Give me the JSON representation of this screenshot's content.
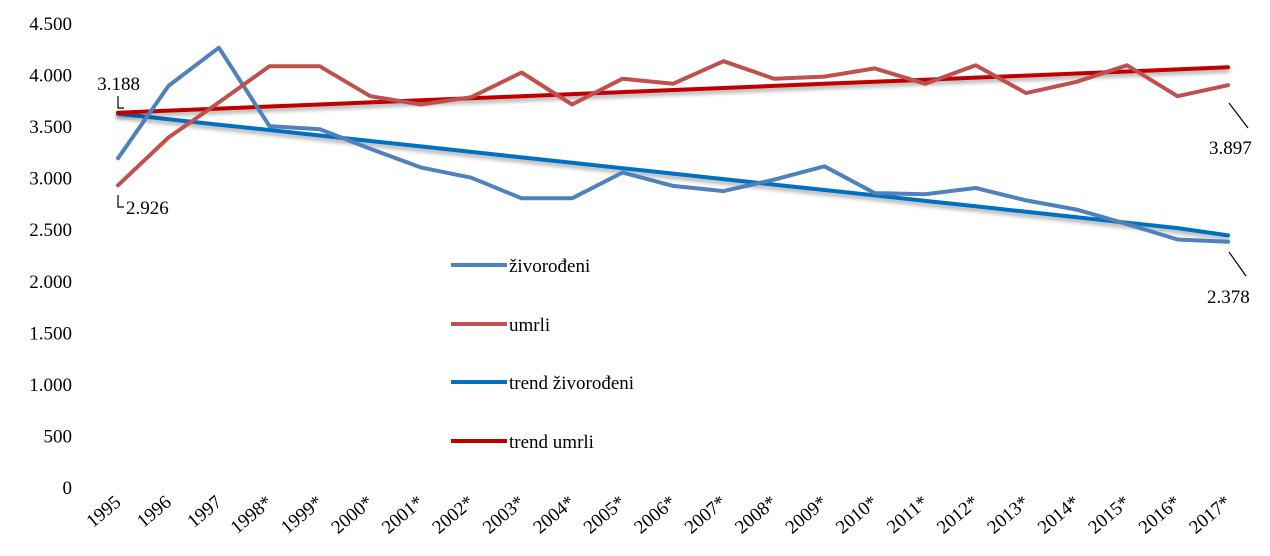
{
  "chart_data": {
    "type": "line",
    "title": "",
    "xlabel": "",
    "ylabel": "",
    "ylim": [
      0,
      4500
    ],
    "yticks": [
      {
        "value": 0,
        "label": "0"
      },
      {
        "value": 500,
        "label": "500"
      },
      {
        "value": 1000,
        "label": "1.000"
      },
      {
        "value": 1500,
        "label": "1.500"
      },
      {
        "value": 2000,
        "label": "2.000"
      },
      {
        "value": 2500,
        "label": "2.500"
      },
      {
        "value": 3000,
        "label": "3.000"
      },
      {
        "value": 3500,
        "label": "3.500"
      },
      {
        "value": 4000,
        "label": "4.000"
      },
      {
        "value": 4500,
        "label": "4.500"
      }
    ],
    "grid": false,
    "legend_position": "center",
    "categories": [
      "1995",
      "1996",
      "1997",
      "1998*",
      "1999*",
      "2000*",
      "2001*",
      "2002*",
      "2003*",
      "2004*",
      "2005*",
      "2006*",
      "2007*",
      "2008*",
      "2009*",
      "2010*",
      "2011*",
      "2012*",
      "2013*",
      "2014*",
      "2015*",
      "2016*",
      "2017*"
    ],
    "series": [
      {
        "name": "živorođeni",
        "color": "#4f81bd",
        "kind": "data",
        "values": [
          3188,
          3890,
          4260,
          3500,
          3470,
          3280,
          3100,
          3000,
          2800,
          2800,
          3050,
          2920,
          2870,
          2980,
          3110,
          2850,
          2840,
          2900,
          2780,
          2690,
          2550,
          2400,
          2378
        ]
      },
      {
        "name": "umrli",
        "color": "#c0504d",
        "kind": "data",
        "values": [
          2926,
          3390,
          3730,
          4080,
          4080,
          3790,
          3710,
          3780,
          4020,
          3710,
          3960,
          3910,
          4130,
          3960,
          3980,
          4060,
          3910,
          4090,
          3820,
          3930,
          4090,
          3790,
          3897
        ]
      },
      {
        "name": "trend živorođeni",
        "color": "#0070c0",
        "kind": "trend",
        "values": [
          3620,
          3567,
          3514,
          3462,
          3409,
          3356,
          3303,
          3250,
          3197,
          3145,
          3092,
          3039,
          2986,
          2933,
          2880,
          2828,
          2775,
          2722,
          2669,
          2616,
          2563,
          2511,
          2440
        ]
      },
      {
        "name": "trend umrli",
        "color": "#c00000",
        "kind": "trend",
        "values": [
          3630,
          3650,
          3670,
          3690,
          3710,
          3730,
          3750,
          3770,
          3790,
          3810,
          3830,
          3850,
          3870,
          3890,
          3910,
          3930,
          3950,
          3970,
          3990,
          4010,
          4030,
          4050,
          4070
        ]
      }
    ],
    "annotations": [
      {
        "text": "3.188",
        "series": 0,
        "index": 0
      },
      {
        "text": "2.926",
        "series": 1,
        "index": 0
      },
      {
        "text": "3.897",
        "series": 1,
        "index": 22
      },
      {
        "text": "2.378",
        "series": 0,
        "index": 22
      }
    ]
  }
}
